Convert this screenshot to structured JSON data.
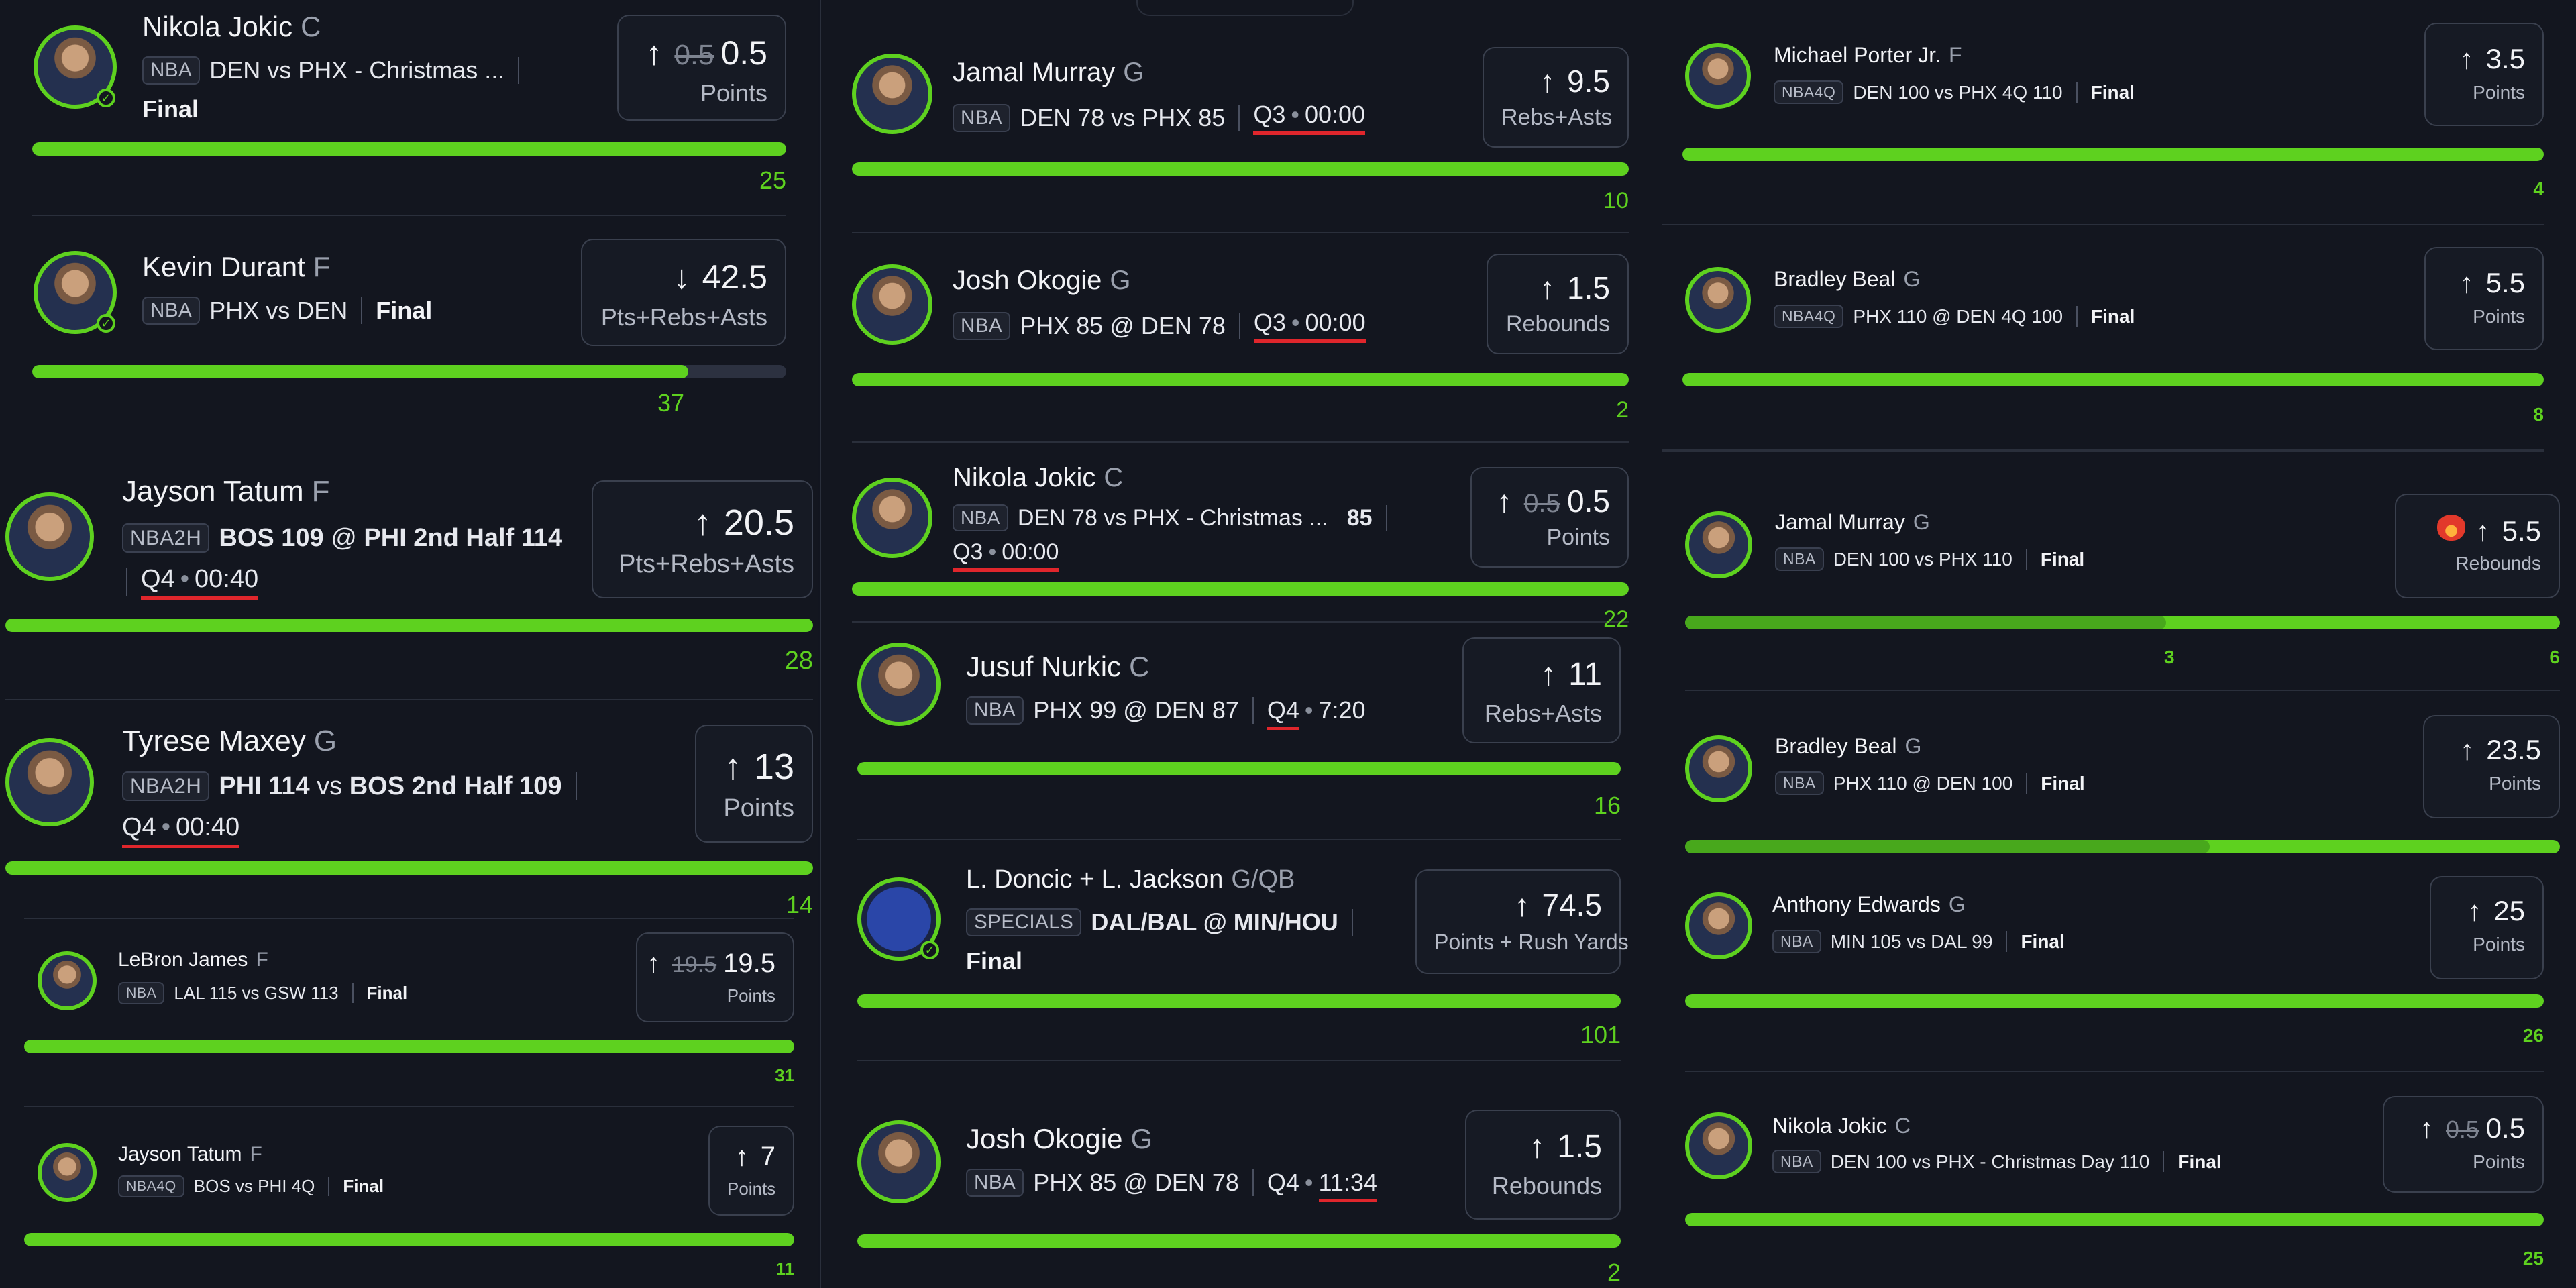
{
  "columns": [
    {
      "cards": [
        {
          "name": "Nikola Jokic",
          "pos": "C",
          "league": "NBA",
          "matchup": "DEN vs PHX - Christmas ...",
          "status": "Final",
          "old_line": "0.5",
          "line": "0.5",
          "direction": "up",
          "stat": "Points",
          "result": "25",
          "progress": 1.0,
          "checked": true
        },
        {
          "name": "Kevin Durant",
          "pos": "F",
          "league": "NBA",
          "matchup": "PHX vs DEN",
          "status": "Final",
          "line": "42.5",
          "direction": "down",
          "stat": "Pts+Rebs+Asts",
          "result": "37",
          "progress": 0.87,
          "checked": true
        },
        {
          "name": "Jayson Tatum",
          "pos": "F",
          "league": "NBA2H",
          "matchup_parts": [
            "BOS 109",
            "@",
            "PHI 2nd Half 114"
          ],
          "quarter": "Q4",
          "clock": "00:40",
          "line": "20.5",
          "direction": "up",
          "stat": "Pts+Rebs+Asts",
          "result": "28",
          "progress": 1.0
        },
        {
          "name": "Tyrese Maxey",
          "pos": "G",
          "league": "NBA2H",
          "matchup_parts": [
            "PHI 114",
            "vs",
            "BOS 2nd Half 109"
          ],
          "quarter": "Q4",
          "clock": "00:40",
          "line": "13",
          "direction": "up",
          "stat": "Points",
          "result": "14",
          "progress": 1.0
        },
        {
          "name": "LeBron James",
          "pos": "F",
          "league": "NBA",
          "matchup": "LAL 115 vs GSW 113",
          "status": "Final",
          "old_line": "19.5",
          "line": "19.5",
          "direction": "up",
          "stat": "Points",
          "result": "31",
          "progress": 1.0
        },
        {
          "name": "Jayson Tatum",
          "pos": "F",
          "league": "NBA4Q",
          "matchup": "BOS vs PHI 4Q",
          "status": "Final",
          "line": "7",
          "direction": "up",
          "stat": "Points",
          "result": "11",
          "progress": 1.0
        }
      ]
    },
    {
      "cards": [
        {
          "name": "Jamal Murray",
          "pos": "G",
          "league": "NBA",
          "matchup": "DEN 78 vs PHX 85",
          "quarter": "Q3",
          "clock": "00:00",
          "line": "9.5",
          "direction": "up",
          "stat": "Rebs+Asts",
          "result": "10",
          "progress": 1.0
        },
        {
          "name": "Josh Okogie",
          "pos": "G",
          "league": "NBA",
          "matchup": "PHX 85 @ DEN 78",
          "quarter": "Q3",
          "clock": "00:00",
          "line": "1.5",
          "direction": "up",
          "stat": "Rebounds",
          "result": "2",
          "progress": 1.0
        },
        {
          "name": "Nikola Jokic",
          "pos": "C",
          "league": "NBA",
          "matchup": "DEN 78 vs PHX - Christmas ...",
          "score": "85",
          "quarter": "Q3",
          "clock": "00:00",
          "old_line": "0.5",
          "line": "0.5",
          "direction": "up",
          "stat": "Points",
          "result": "22",
          "progress": 1.0
        },
        {
          "name": "Jusuf Nurkic",
          "pos": "C",
          "league": "NBA",
          "matchup": "PHX 99 @ DEN 87",
          "quarter": "Q4",
          "clock": "7:20",
          "line": "11",
          "direction": "up",
          "stat": "Rebs+Asts",
          "result": "16",
          "progress": 1.0
        },
        {
          "name": "L. Doncic + L. Jackson",
          "pos": "G/QB",
          "league": "SPECIALS",
          "matchup": "DAL/BAL  @ MIN/HOU",
          "status": "Final",
          "line": "74.5",
          "direction": "up",
          "stat": "Points + Rush Yards",
          "result": "101",
          "progress": 1.0,
          "checked": true
        },
        {
          "name": "Josh Okogie",
          "pos": "G",
          "league": "NBA",
          "matchup": "PHX 85 @ DEN 78",
          "quarter": "Q4",
          "clock": "11:34",
          "line": "1.5",
          "direction": "up",
          "stat": "Rebounds",
          "result": "2",
          "progress": 1.0
        }
      ]
    },
    {
      "cards": [
        {
          "name": "Michael Porter Jr.",
          "pos": "F",
          "league": "NBA4Q",
          "matchup": "DEN 100 vs PHX 4Q 110",
          "status": "Final",
          "line": "3.5",
          "direction": "up",
          "stat": "Points",
          "result": "4",
          "progress": 1.0
        },
        {
          "name": "Bradley Beal",
          "pos": "G",
          "league": "NBA4Q",
          "matchup": "PHX 110  @  DEN 4Q 100",
          "status": "Final",
          "line": "5.5",
          "direction": "up",
          "stat": "Points",
          "result": "8",
          "progress": 1.0
        },
        {
          "name": "Jamal Murray",
          "pos": "G",
          "league": "NBA",
          "matchup": "DEN 100 vs PHX 110",
          "status": "Final",
          "line": "5.5",
          "direction": "up",
          "stat": "Rebounds",
          "result": "6",
          "partial": "3",
          "progress": 1.0,
          "partial_progress": 0.55
        },
        {
          "name": "Bradley Beal",
          "pos": "G",
          "league": "NBA",
          "matchup": "PHX 110  @  DEN 100",
          "status": "Final",
          "line": "23.5",
          "direction": "up",
          "stat": "Points",
          "progress": 1.0,
          "partial_progress": 0.6
        },
        {
          "name": "Anthony Edwards",
          "pos": "G",
          "league": "NBA",
          "matchup": "MIN 105 vs DAL 99",
          "status": "Final",
          "line": "25",
          "direction": "up",
          "stat": "Points",
          "result": "26",
          "progress": 1.0
        },
        {
          "name": "Nikola Jokic",
          "pos": "C",
          "league": "NBA",
          "matchup": "DEN 100 vs PHX - Christmas Day 110",
          "status": "Final",
          "old_line": "0.5",
          "line": "0.5",
          "direction": "up",
          "stat": "Points",
          "result": "25",
          "progress": 1.0
        }
      ]
    }
  ],
  "icons": {
    "up": "arrow-up-icon",
    "down": "arrow-down-icon",
    "check": "check-icon",
    "flame": "flame-icon"
  },
  "colors": {
    "background": "#13161f",
    "accent": "#5ed11f",
    "underline": "#e0262c"
  }
}
